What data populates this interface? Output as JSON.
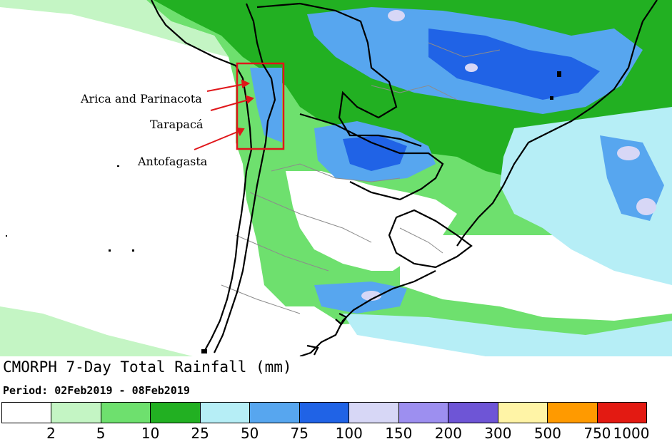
{
  "title": "CMORPH 7-Day Total Rainfall (mm)",
  "period": "Period: 02Feb2019 - 08Feb2019",
  "annotations": [
    {
      "id": "arica",
      "text": "Arica and Parinacota"
    },
    {
      "id": "tarapaca",
      "text": "Tarapacá"
    },
    {
      "id": "antofagasta",
      "text": "Antofagasta"
    }
  ],
  "legend": {
    "colors": [
      "#ffffff",
      "#c4f5c4",
      "#6ee06e",
      "#22b022",
      "#b6eef6",
      "#57a6ef",
      "#2063e6",
      "#d7d7f6",
      "#9d8ff0",
      "#6e55d6",
      "#fff4a6",
      "#ff9a00",
      "#e31a12"
    ],
    "ticks": [
      "2",
      "5",
      "10",
      "25",
      "50",
      "75",
      "100",
      "150",
      "200",
      "300",
      "500",
      "750",
      "1000"
    ]
  },
  "colors": {
    "light_green": "#c4f5c4",
    "green": "#6ee06e",
    "dark_green": "#22b022",
    "light_blue": "#b6eef6",
    "blue": "#57a6ef",
    "dark_blue": "#2063e6",
    "lavender": "#d7d7f6",
    "highlight_box": "#e0161a",
    "arrow": "#e0161a",
    "coastline": "#000000",
    "borders": "#8c8c8c"
  }
}
